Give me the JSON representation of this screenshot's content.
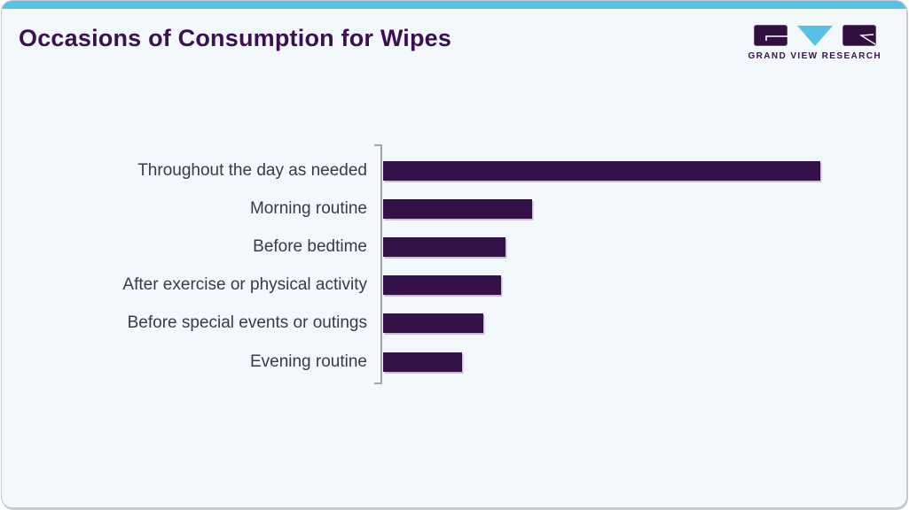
{
  "header": {
    "title": "Occasions of Consumption for Wipes"
  },
  "logo": {
    "wordmark": "GRAND VIEW RESEARCH"
  },
  "colors": {
    "accent_stripe": "#57C1E8",
    "card_background": "#F2F8FB",
    "title_text": "#3A1053",
    "bar_fill": "#341148",
    "label_text": "#3C3945",
    "axis_line": "#9FA6AC",
    "logo_purple": "#31103F",
    "logo_blue": "#57C1E8"
  },
  "chart_data": {
    "type": "bar",
    "orientation": "horizontal",
    "title": "Occasions of Consumption for Wipes",
    "categories": [
      "Throughout the day as needed",
      "Morning routine",
      "Before bedtime",
      "After exercise or physical activity",
      "Before special events or outings",
      "Evening routine"
    ],
    "values": [
      100,
      34,
      28,
      27,
      23,
      18
    ],
    "value_scale": "relative, longest bar = 100 (no numeric labels shown in chart)",
    "xlabel": "",
    "ylabel": "",
    "xlim": [
      0,
      114
    ],
    "grid": false,
    "legend": false,
    "value_labels_shown": false,
    "bar_color": "#341148"
  }
}
